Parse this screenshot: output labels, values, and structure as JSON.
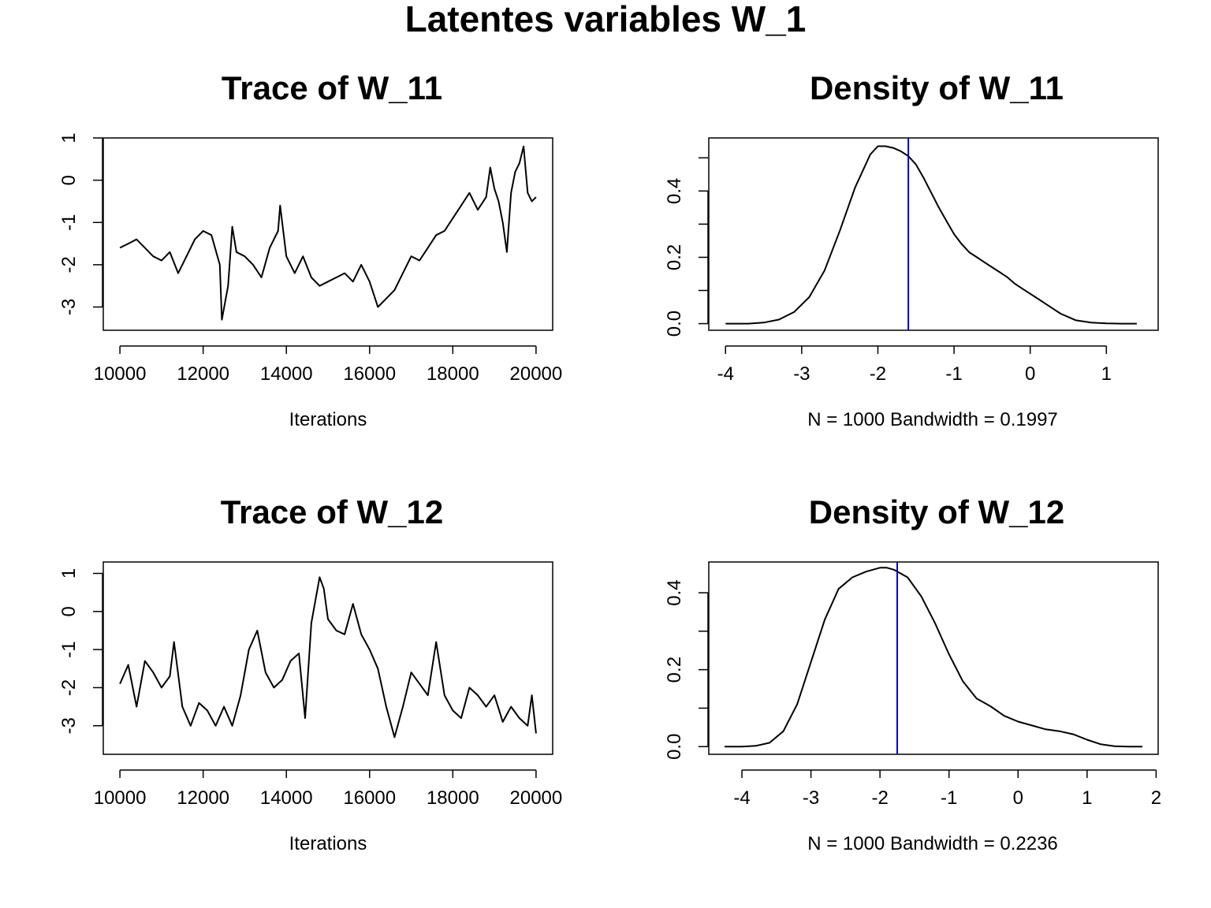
{
  "figure": {
    "title": "Latentes variables W_1"
  },
  "chart_data": [
    {
      "type": "line",
      "title": "Trace of W_11",
      "xlabel": "Iterations",
      "ylabel": "",
      "xlim": [
        9600,
        20400
      ],
      "ylim": [
        -3.55,
        1.0
      ],
      "xticks": [
        10000,
        12000,
        14000,
        16000,
        18000,
        20000
      ],
      "yticks": [
        -3,
        -2,
        -1,
        0,
        1
      ],
      "grid": false,
      "series": [
        {
          "color": "#000000",
          "x": [
            10000,
            10200,
            10400,
            10600,
            10800,
            11000,
            11200,
            11400,
            11600,
            11800,
            12000,
            12200,
            12400,
            12450,
            12600,
            12700,
            12800,
            13000,
            13200,
            13400,
            13600,
            13800,
            13850,
            14000,
            14200,
            14400,
            14600,
            14800,
            15000,
            15200,
            15400,
            15600,
            15800,
            16000,
            16200,
            16400,
            16600,
            16800,
            17000,
            17200,
            17400,
            17600,
            17800,
            18000,
            18200,
            18400,
            18600,
            18800,
            18900,
            19000,
            19100,
            19200,
            19300,
            19400,
            19500,
            19600,
            19700,
            19800,
            19900,
            20000
          ],
          "y": [
            -1.6,
            -1.5,
            -1.4,
            -1.6,
            -1.8,
            -1.9,
            -1.7,
            -2.2,
            -1.8,
            -1.4,
            -1.2,
            -1.3,
            -2.0,
            -3.3,
            -2.5,
            -1.1,
            -1.7,
            -1.8,
            -2.0,
            -2.3,
            -1.6,
            -1.2,
            -0.6,
            -1.8,
            -2.2,
            -1.8,
            -2.3,
            -2.5,
            -2.4,
            -2.3,
            -2.2,
            -2.4,
            -2.0,
            -2.4,
            -3.0,
            -2.8,
            -2.6,
            -2.2,
            -1.8,
            -1.9,
            -1.6,
            -1.3,
            -1.2,
            -0.9,
            -0.6,
            -0.3,
            -0.7,
            -0.4,
            0.3,
            -0.2,
            -0.5,
            -1.0,
            -1.7,
            -0.3,
            0.2,
            0.4,
            0.8,
            -0.3,
            -0.5,
            -0.4
          ]
        }
      ]
    },
    {
      "type": "line",
      "title": "Density of W_11",
      "xlabel": "N = 1000   Bandwidth = 0.1997",
      "ylabel": "",
      "xlim": [
        -4.22,
        1.68
      ],
      "ylim": [
        -0.02,
        0.56
      ],
      "xticks": [
        -4,
        -3,
        -2,
        -1,
        0,
        1
      ],
      "yticks": [
        0.0,
        0.2,
        0.4
      ],
      "grid": false,
      "vline": {
        "x": -1.6,
        "color": "#0000cc"
      },
      "series": [
        {
          "color": "#000000",
          "x": [
            -4.0,
            -3.7,
            -3.5,
            -3.3,
            -3.1,
            -2.9,
            -2.7,
            -2.5,
            -2.3,
            -2.1,
            -2.0,
            -1.9,
            -1.8,
            -1.7,
            -1.6,
            -1.5,
            -1.4,
            -1.3,
            -1.2,
            -1.1,
            -1.0,
            -0.9,
            -0.8,
            -0.7,
            -0.6,
            -0.5,
            -0.4,
            -0.3,
            -0.2,
            -0.1,
            0.0,
            0.1,
            0.2,
            0.3,
            0.4,
            0.5,
            0.6,
            0.8,
            1.0,
            1.2,
            1.4
          ],
          "y": [
            0.0,
            0.0,
            0.003,
            0.012,
            0.035,
            0.08,
            0.16,
            0.28,
            0.41,
            0.51,
            0.535,
            0.535,
            0.53,
            0.52,
            0.505,
            0.48,
            0.44,
            0.395,
            0.35,
            0.31,
            0.27,
            0.24,
            0.215,
            0.2,
            0.185,
            0.17,
            0.155,
            0.14,
            0.12,
            0.105,
            0.09,
            0.075,
            0.06,
            0.045,
            0.03,
            0.02,
            0.01,
            0.003,
            0.001,
            0.0,
            0.0
          ]
        }
      ]
    },
    {
      "type": "line",
      "title": "Trace of W_12",
      "xlabel": "Iterations",
      "ylabel": "",
      "xlim": [
        9600,
        20400
      ],
      "ylim": [
        -3.75,
        1.3
      ],
      "xticks": [
        10000,
        12000,
        14000,
        16000,
        18000,
        20000
      ],
      "yticks": [
        -3,
        -2,
        -1,
        0,
        1
      ],
      "grid": false,
      "series": [
        {
          "color": "#000000",
          "x": [
            10000,
            10200,
            10400,
            10600,
            10800,
            11000,
            11200,
            11300,
            11500,
            11700,
            11900,
            12100,
            12300,
            12500,
            12700,
            12900,
            13100,
            13300,
            13500,
            13700,
            13900,
            14100,
            14300,
            14450,
            14600,
            14800,
            14900,
            15000,
            15200,
            15400,
            15600,
            15800,
            16000,
            16200,
            16400,
            16600,
            16800,
            17000,
            17200,
            17400,
            17600,
            17800,
            18000,
            18200,
            18400,
            18600,
            18800,
            19000,
            19200,
            19400,
            19600,
            19800,
            19900,
            20000
          ],
          "y": [
            -1.9,
            -1.4,
            -2.5,
            -1.3,
            -1.6,
            -2.0,
            -1.7,
            -0.8,
            -2.5,
            -3.0,
            -2.4,
            -2.6,
            -3.0,
            -2.5,
            -3.0,
            -2.2,
            -1.0,
            -0.5,
            -1.6,
            -2.0,
            -1.8,
            -1.3,
            -1.1,
            -2.8,
            -0.3,
            0.9,
            0.6,
            -0.2,
            -0.5,
            -0.6,
            0.2,
            -0.6,
            -1.0,
            -1.5,
            -2.5,
            -3.3,
            -2.5,
            -1.6,
            -1.9,
            -2.2,
            -0.8,
            -2.2,
            -2.6,
            -2.8,
            -2.0,
            -2.2,
            -2.5,
            -2.2,
            -2.9,
            -2.5,
            -2.8,
            -3.0,
            -2.2,
            -3.2
          ]
        }
      ]
    },
    {
      "type": "line",
      "title": "Density of W_12",
      "xlabel": "N = 1000   Bandwidth = 0.2236",
      "ylabel": "",
      "xlim": [
        -4.48,
        2.03
      ],
      "ylim": [
        -0.02,
        0.48
      ],
      "xticks": [
        -4,
        -3,
        -2,
        -1,
        0,
        1,
        2
      ],
      "yticks": [
        0.0,
        0.2,
        0.4
      ],
      "grid": false,
      "vline": {
        "x": -1.75,
        "color": "#0000cc"
      },
      "series": [
        {
          "color": "#000000",
          "x": [
            -4.25,
            -4.0,
            -3.8,
            -3.6,
            -3.4,
            -3.2,
            -3.0,
            -2.8,
            -2.6,
            -2.4,
            -2.2,
            -2.0,
            -1.9,
            -1.8,
            -1.6,
            -1.4,
            -1.2,
            -1.0,
            -0.8,
            -0.6,
            -0.4,
            -0.2,
            0.0,
            0.2,
            0.4,
            0.6,
            0.8,
            1.0,
            1.2,
            1.4,
            1.6,
            1.8
          ],
          "y": [
            0.0,
            0.0,
            0.002,
            0.01,
            0.04,
            0.11,
            0.22,
            0.33,
            0.41,
            0.44,
            0.455,
            0.465,
            0.465,
            0.46,
            0.44,
            0.39,
            0.32,
            0.24,
            0.17,
            0.125,
            0.105,
            0.08,
            0.065,
            0.055,
            0.045,
            0.04,
            0.032,
            0.018,
            0.006,
            0.001,
            0.0,
            0.0
          ]
        }
      ]
    }
  ]
}
